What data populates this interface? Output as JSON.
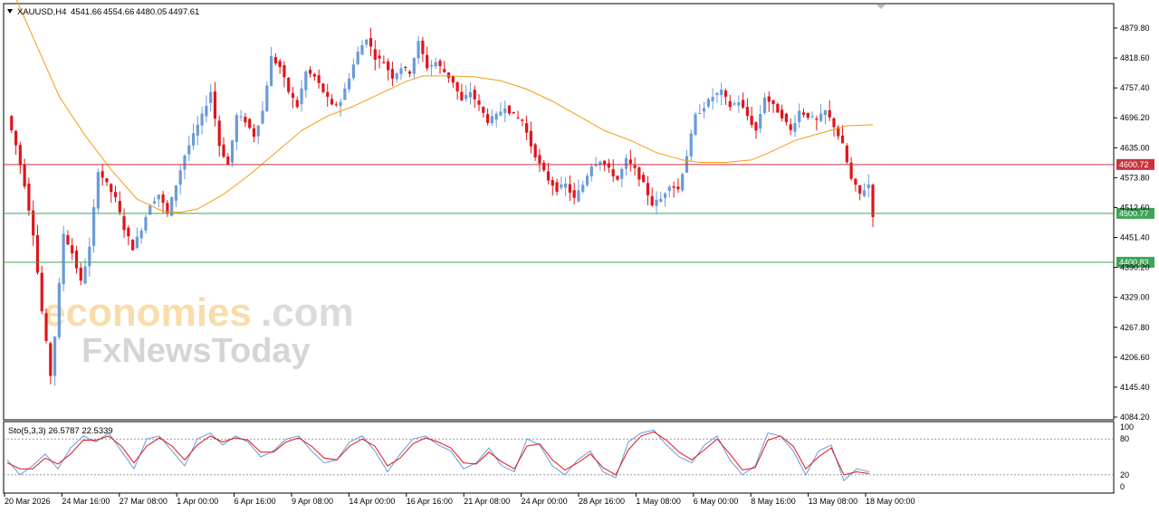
{
  "header": {
    "symbol": "XAUUSD,H4",
    "open": "4541.66",
    "high": "4554.66",
    "low": "4480.05",
    "close": "4497.61"
  },
  "watermark": {
    "line1_part1": "economies",
    "line1_part2": ".com",
    "line2": "FxNewsToday"
  },
  "stochastic": {
    "label": "Sto(5,3,3) 26.5787 22.5339",
    "levels": [
      "100",
      "80",
      "20",
      "0"
    ]
  },
  "colors": {
    "bull": "#6a9bd8",
    "bear": "#e0151b",
    "ma": "#f39c12",
    "resistance": "#c9333e",
    "support": "#3aa655",
    "stoch_main": "#6a9bd8",
    "stoch_signal": "#e0151b"
  },
  "chart_data": {
    "type": "candlestick",
    "timeframe": "H4",
    "y_ticks": [
      "4879.80",
      "4818.60",
      "4757.40",
      "4696.20",
      "4635.00",
      "4573.80",
      "4512.60",
      "4451.40",
      "4390.20",
      "4329.00",
      "4267.80",
      "4206.60",
      "4145.40",
      "4084.20"
    ],
    "ylim": [
      4084.2,
      4900
    ],
    "x_ticks": [
      "20 Mar 2026",
      "24 Mar 16:00",
      "27 Mar 08:00",
      "1 Apr 00:00",
      "6 Apr 16:00",
      "9 Apr 08:00",
      "14 Apr 00:00",
      "16 Apr 16:00",
      "21 Apr 08:00",
      "24 Apr 00:00",
      "28 Apr 16:00",
      "1 May 08:00",
      "6 May 00:00",
      "8 May 16:00",
      "13 May 08:00",
      "18 May 00:00"
    ],
    "levels": [
      {
        "label": "4600.72",
        "value": 4600.72,
        "kind": "resistance"
      },
      {
        "label": "4500.77",
        "value": 4500.77,
        "kind": "support"
      },
      {
        "label": "4400.83",
        "value": 4400.83,
        "kind": "support"
      }
    ],
    "close_path": [
      [
        0,
        4700
      ],
      [
        2,
        4640
      ],
      [
        4,
        4560
      ],
      [
        6,
        4460
      ],
      [
        8,
        4300
      ],
      [
        10,
        4170
      ],
      [
        11,
        4250
      ],
      [
        13,
        4460
      ],
      [
        15,
        4420
      ],
      [
        17,
        4360
      ],
      [
        19,
        4430
      ],
      [
        21,
        4590
      ],
      [
        23,
        4560
      ],
      [
        25,
        4530
      ],
      [
        27,
        4470
      ],
      [
        29,
        4430
      ],
      [
        31,
        4470
      ],
      [
        33,
        4520
      ],
      [
        35,
        4540
      ],
      [
        37,
        4500
      ],
      [
        39,
        4560
      ],
      [
        41,
        4620
      ],
      [
        43,
        4660
      ],
      [
        45,
        4700
      ],
      [
        47,
        4750
      ],
      [
        49,
        4640
      ],
      [
        51,
        4600
      ],
      [
        53,
        4700
      ],
      [
        55,
        4690
      ],
      [
        57,
        4660
      ],
      [
        59,
        4710
      ],
      [
        61,
        4820
      ],
      [
        63,
        4800
      ],
      [
        65,
        4750
      ],
      [
        67,
        4720
      ],
      [
        69,
        4790
      ],
      [
        71,
        4780
      ],
      [
        73,
        4750
      ],
      [
        75,
        4720
      ],
      [
        77,
        4730
      ],
      [
        79,
        4780
      ],
      [
        81,
        4830
      ],
      [
        83,
        4860
      ],
      [
        85,
        4820
      ],
      [
        87,
        4810
      ],
      [
        89,
        4780
      ],
      [
        91,
        4800
      ],
      [
        93,
        4790
      ],
      [
        95,
        4850
      ],
      [
        97,
        4800
      ],
      [
        99,
        4810
      ],
      [
        101,
        4790
      ],
      [
        103,
        4770
      ],
      [
        105,
        4730
      ],
      [
        107,
        4750
      ],
      [
        109,
        4720
      ],
      [
        111,
        4690
      ],
      [
        113,
        4700
      ],
      [
        115,
        4720
      ],
      [
        117,
        4700
      ],
      [
        119,
        4690
      ],
      [
        121,
        4640
      ],
      [
        123,
        4600
      ],
      [
        125,
        4570
      ],
      [
        127,
        4550
      ],
      [
        129,
        4560
      ],
      [
        131,
        4530
      ],
      [
        133,
        4560
      ],
      [
        135,
        4600
      ],
      [
        137,
        4610
      ],
      [
        139,
        4590
      ],
      [
        141,
        4570
      ],
      [
        143,
        4610
      ],
      [
        145,
        4590
      ],
      [
        147,
        4560
      ],
      [
        149,
        4520
      ],
      [
        151,
        4530
      ],
      [
        153,
        4560
      ],
      [
        155,
        4550
      ],
      [
        157,
        4620
      ],
      [
        159,
        4700
      ],
      [
        161,
        4720
      ],
      [
        163,
        4740
      ],
      [
        165,
        4750
      ],
      [
        167,
        4720
      ],
      [
        169,
        4730
      ],
      [
        171,
        4700
      ],
      [
        173,
        4670
      ],
      [
        175,
        4740
      ],
      [
        177,
        4720
      ],
      [
        179,
        4700
      ],
      [
        181,
        4670
      ],
      [
        183,
        4710
      ],
      [
        185,
        4700
      ],
      [
        187,
        4690
      ],
      [
        189,
        4710
      ],
      [
        191,
        4680
      ],
      [
        193,
        4640
      ],
      [
        195,
        4570
      ],
      [
        197,
        4540
      ],
      [
        199,
        4560
      ],
      [
        200,
        4497.61
      ]
    ],
    "ma_path": [
      [
        0,
        4980
      ],
      [
        6,
        4860
      ],
      [
        12,
        4740
      ],
      [
        18,
        4660
      ],
      [
        24,
        4590
      ],
      [
        30,
        4530
      ],
      [
        36,
        4505
      ],
      [
        40,
        4503
      ],
      [
        44,
        4510
      ],
      [
        50,
        4540
      ],
      [
        56,
        4580
      ],
      [
        62,
        4625
      ],
      [
        68,
        4670
      ],
      [
        74,
        4700
      ],
      [
        80,
        4720
      ],
      [
        86,
        4745
      ],
      [
        92,
        4770
      ],
      [
        96,
        4782
      ],
      [
        102,
        4782
      ],
      [
        108,
        4780
      ],
      [
        114,
        4772
      ],
      [
        120,
        4755
      ],
      [
        126,
        4730
      ],
      [
        132,
        4700
      ],
      [
        138,
        4670
      ],
      [
        144,
        4650
      ],
      [
        150,
        4625
      ],
      [
        156,
        4610
      ],
      [
        160,
        4605
      ],
      [
        166,
        4605
      ],
      [
        172,
        4610
      ],
      [
        176,
        4625
      ],
      [
        182,
        4650
      ],
      [
        188,
        4665
      ],
      [
        194,
        4680
      ],
      [
        200,
        4682
      ]
    ],
    "stoch_main": [
      45,
      20,
      35,
      55,
      30,
      65,
      85,
      75,
      90,
      60,
      30,
      80,
      85,
      60,
      35,
      80,
      90,
      70,
      85,
      75,
      50,
      60,
      80,
      85,
      60,
      40,
      45,
      75,
      85,
      60,
      25,
      55,
      80,
      85,
      70,
      60,
      30,
      40,
      65,
      35,
      25,
      80,
      70,
      35,
      20,
      45,
      60,
      25,
      15,
      75,
      90,
      95,
      70,
      50,
      40,
      70,
      85,
      45,
      20,
      35,
      90,
      85,
      60,
      20,
      60,
      70,
      10,
      30,
      25
    ],
    "stoch_signal": [
      40,
      30,
      30,
      48,
      38,
      55,
      78,
      78,
      85,
      68,
      40,
      68,
      82,
      68,
      45,
      70,
      85,
      75,
      82,
      78,
      58,
      58,
      75,
      82,
      68,
      48,
      45,
      68,
      80,
      68,
      35,
      48,
      72,
      82,
      75,
      65,
      40,
      38,
      58,
      42,
      30,
      68,
      72,
      45,
      28,
      40,
      55,
      32,
      20,
      62,
      85,
      92,
      78,
      58,
      45,
      62,
      80,
      55,
      28,
      32,
      78,
      85,
      68,
      30,
      50,
      65,
      20,
      25,
      22
    ]
  }
}
